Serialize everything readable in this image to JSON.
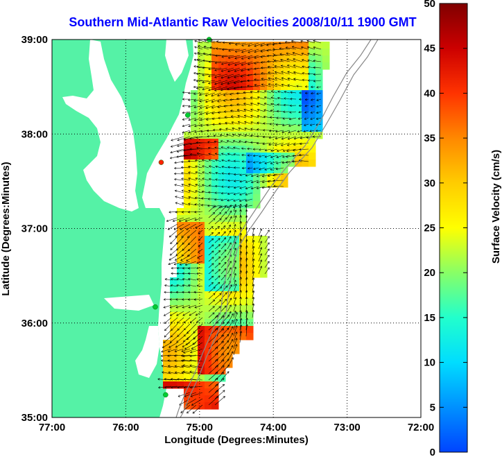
{
  "title": "Southern Mid-Atlantic Raw Velocities 2008/10/11 1900 GMT",
  "x_axis": {
    "label": "Longitude (Degrees:Minutes)",
    "ticks": [
      "77:00",
      "76:00",
      "75:00",
      "74:00",
      "73:00",
      "72:00"
    ]
  },
  "y_axis": {
    "label": "Latitude (Degrees:Minutes)",
    "ticks": [
      "39:00",
      "38:00",
      "37:00",
      "36:00",
      "35:00"
    ]
  },
  "colorbar": {
    "label": "Surface Velocity (cm/s)",
    "ticks": [
      "0",
      "5",
      "10",
      "15",
      "20",
      "25",
      "30",
      "35",
      "40",
      "45",
      "50"
    ],
    "min": 0,
    "max": 50
  },
  "colors": {
    "land": "#55f2a6",
    "title": "#0000ff",
    "station": "#00cc33",
    "station_inactive": "#ff2200"
  },
  "stations": [
    {
      "lon": -74.87,
      "lat": 39.0,
      "status": "active"
    },
    {
      "lon": -75.16,
      "lat": 38.2,
      "status": "active"
    },
    {
      "lon": -75.52,
      "lat": 37.7,
      "status": "inactive"
    },
    {
      "lon": -75.6,
      "lat": 36.17,
      "status": "active"
    },
    {
      "lon": -75.46,
      "lat": 35.24,
      "status": "active"
    }
  ]
}
